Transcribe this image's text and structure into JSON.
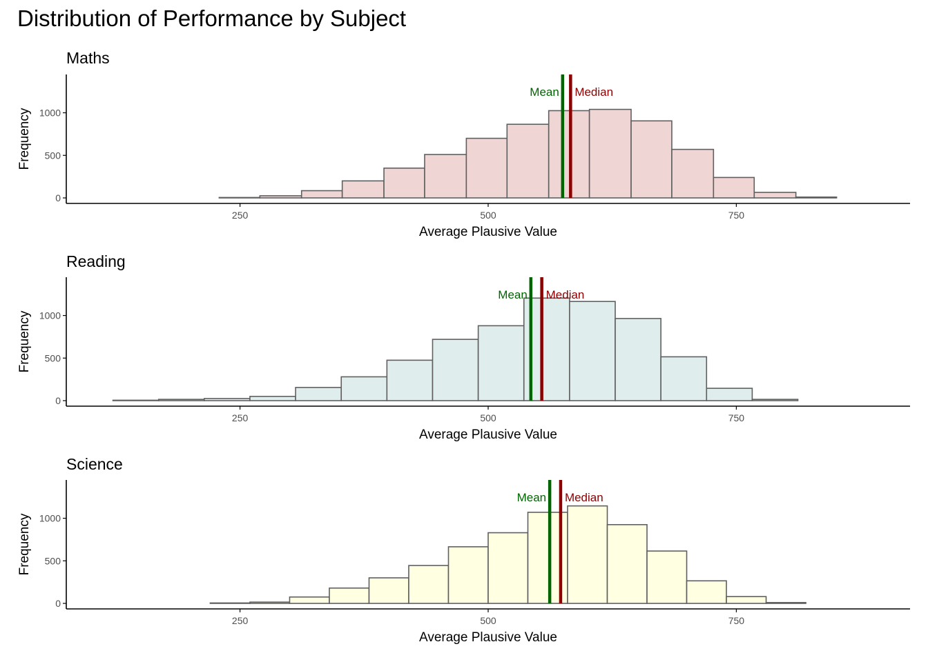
{
  "title": "Distribution of Performance by Subject",
  "colors": {
    "bar_stroke": "#5f5f5f",
    "mean": "#006400",
    "median": "#8b0000",
    "axis": "#000000",
    "tick_label": "#4d4d4d"
  },
  "chart_data": [
    {
      "type": "histogram",
      "title": "Maths",
      "xlabel": "Average Plausive Value",
      "ylabel": "Frequency",
      "xlim": [
        75,
        925
      ],
      "ylim": [
        0,
        1450
      ],
      "x_ticks": [
        250,
        500,
        750
      ],
      "y_ticks": [
        0,
        500,
        1000
      ],
      "fill": "#efd5d3",
      "bins": [
        {
          "x0": 229,
          "x1": 270,
          "count": 5
        },
        {
          "x0": 270,
          "x1": 312,
          "count": 25
        },
        {
          "x0": 312,
          "x1": 353,
          "count": 85
        },
        {
          "x0": 353,
          "x1": 395,
          "count": 200
        },
        {
          "x0": 395,
          "x1": 436,
          "count": 350
        },
        {
          "x0": 436,
          "x1": 478,
          "count": 510
        },
        {
          "x0": 478,
          "x1": 519,
          "count": 700
        },
        {
          "x0": 519,
          "x1": 561,
          "count": 865
        },
        {
          "x0": 561,
          "x1": 602,
          "count": 1025
        },
        {
          "x0": 602,
          "x1": 644,
          "count": 1040
        },
        {
          "x0": 644,
          "x1": 685,
          "count": 905
        },
        {
          "x0": 685,
          "x1": 727,
          "count": 570
        },
        {
          "x0": 727,
          "x1": 768,
          "count": 240
        },
        {
          "x0": 768,
          "x1": 810,
          "count": 65
        },
        {
          "x0": 810,
          "x1": 851,
          "count": 10
        }
      ],
      "mean": 575,
      "median": 583,
      "mean_label": "Mean",
      "median_label": "Median"
    },
    {
      "type": "histogram",
      "title": "Reading",
      "xlabel": "Average Plausive Value",
      "ylabel": "Frequency",
      "xlim": [
        75,
        925
      ],
      "ylim": [
        0,
        1450
      ],
      "x_ticks": [
        250,
        500,
        750
      ],
      "y_ticks": [
        0,
        500,
        1000
      ],
      "fill": "#e0eded",
      "bins": [
        {
          "x0": 122,
          "x1": 168,
          "count": 5
        },
        {
          "x0": 168,
          "x1": 214,
          "count": 15
        },
        {
          "x0": 214,
          "x1": 260,
          "count": 25
        },
        {
          "x0": 260,
          "x1": 306,
          "count": 50
        },
        {
          "x0": 306,
          "x1": 352,
          "count": 155
        },
        {
          "x0": 352,
          "x1": 398,
          "count": 280
        },
        {
          "x0": 398,
          "x1": 444,
          "count": 475
        },
        {
          "x0": 444,
          "x1": 490,
          "count": 720
        },
        {
          "x0": 490,
          "x1": 536,
          "count": 880
        },
        {
          "x0": 536,
          "x1": 582,
          "count": 1205
        },
        {
          "x0": 582,
          "x1": 628,
          "count": 1165
        },
        {
          "x0": 628,
          "x1": 674,
          "count": 965
        },
        {
          "x0": 674,
          "x1": 720,
          "count": 515
        },
        {
          "x0": 720,
          "x1": 766,
          "count": 145
        },
        {
          "x0": 766,
          "x1": 812,
          "count": 15
        }
      ],
      "mean": 543,
      "median": 554,
      "mean_label": "Mean",
      "median_label": "Median"
    },
    {
      "type": "histogram",
      "title": "Science",
      "xlabel": "Average Plausive Value",
      "ylabel": "Frequency",
      "xlim": [
        75,
        925
      ],
      "ylim": [
        0,
        1450
      ],
      "x_ticks": [
        250,
        500,
        750
      ],
      "y_ticks": [
        0,
        500,
        1000
      ],
      "fill": "#ffffe2",
      "bins": [
        {
          "x0": 220,
          "x1": 260,
          "count": 5
        },
        {
          "x0": 260,
          "x1": 300,
          "count": 15
        },
        {
          "x0": 300,
          "x1": 340,
          "count": 75
        },
        {
          "x0": 340,
          "x1": 380,
          "count": 180
        },
        {
          "x0": 380,
          "x1": 420,
          "count": 300
        },
        {
          "x0": 420,
          "x1": 460,
          "count": 445
        },
        {
          "x0": 460,
          "x1": 500,
          "count": 665
        },
        {
          "x0": 500,
          "x1": 540,
          "count": 830
        },
        {
          "x0": 540,
          "x1": 580,
          "count": 1070
        },
        {
          "x0": 580,
          "x1": 620,
          "count": 1145
        },
        {
          "x0": 620,
          "x1": 660,
          "count": 925
        },
        {
          "x0": 660,
          "x1": 700,
          "count": 615
        },
        {
          "x0": 700,
          "x1": 740,
          "count": 265
        },
        {
          "x0": 740,
          "x1": 780,
          "count": 80
        },
        {
          "x0": 780,
          "x1": 820,
          "count": 10
        }
      ],
      "mean": 562,
      "median": 573,
      "mean_label": "Mean",
      "median_label": "Median"
    }
  ]
}
